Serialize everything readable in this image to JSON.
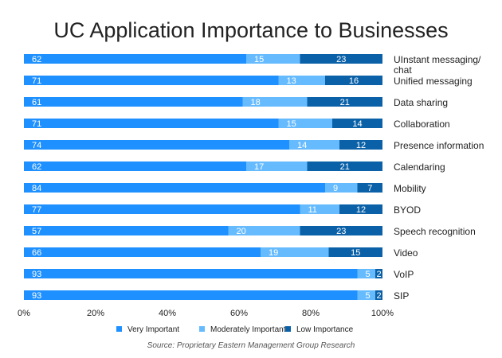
{
  "chart_data": {
    "type": "bar",
    "orientation": "horizontal",
    "stacked": true,
    "title": "UC Application Importance to Businesses",
    "source": "Source: Proprietary Eastern Management Group Research",
    "categories": [
      [
        "UInstant messaging/",
        "chat"
      ],
      [
        "Unified messaging"
      ],
      [
        "Data sharing"
      ],
      [
        "Collaboration"
      ],
      [
        "Presence information"
      ],
      [
        "Calendaring"
      ],
      [
        "Mobility"
      ],
      [
        "BYOD"
      ],
      [
        "Speech recognition"
      ],
      [
        "Video"
      ],
      [
        "VoIP"
      ],
      [
        "SIP"
      ]
    ],
    "series": [
      {
        "name": "Very Important",
        "color": "#1e90ff",
        "values": [
          62,
          71,
          61,
          71,
          74,
          62,
          84,
          77,
          57,
          66,
          93,
          93
        ]
      },
      {
        "name": "Moderately Important",
        "color": "#66bbff",
        "values": [
          15,
          13,
          18,
          15,
          14,
          17,
          9,
          11,
          20,
          19,
          5,
          5
        ]
      },
      {
        "name": "Low Importance",
        "color": "#0a61a8",
        "values": [
          23,
          16,
          21,
          14,
          12,
          21,
          7,
          12,
          23,
          15,
          2,
          2
        ]
      }
    ],
    "x_ticks": [
      "0%",
      "20%",
      "40%",
      "60%",
      "80%",
      "100%"
    ],
    "xlim": [
      0,
      100
    ],
    "legend_position": "bottom",
    "grid": false
  }
}
